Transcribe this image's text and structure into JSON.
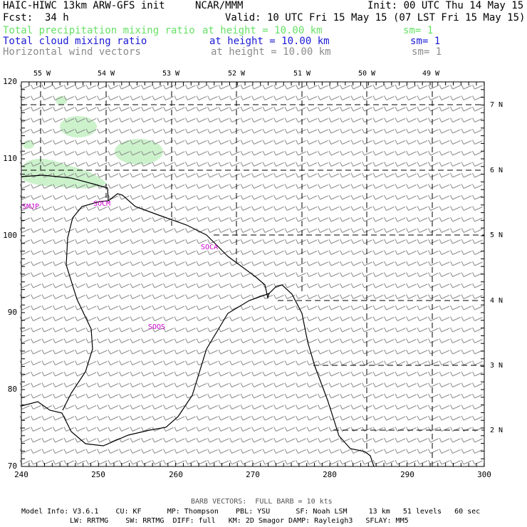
{
  "header": {
    "model": "HAIC-HIWC 13km ARW-GFS init",
    "org": "NCAR/MMM",
    "init": "Init: 00 UTC Thu 14 May 15",
    "fcst_label": "Fcst:",
    "fcst_value": "34 h",
    "valid": "Valid: 10 UTC Fri 15 May 15 (07 LST Fri 15 May 15)"
  },
  "fields": [
    {
      "name": "Total precipitation mixing ratio",
      "height": "at height = 10.00 km",
      "sm": "sm= 1",
      "color": "#66e066"
    },
    {
      "name": "Total cloud mixing ratio",
      "height": "at height = 10.00 km",
      "sm": "sm= 1",
      "color": "#1a1ad6"
    },
    {
      "name": "Horizontal wind vectors",
      "height": "at height = 10.00 km",
      "sm": "sm= 1",
      "color": "#8c8c8c"
    }
  ],
  "map": {
    "x_ticks": [
      "240",
      "250",
      "260",
      "270",
      "280",
      "290",
      "300"
    ],
    "y_ticks": [
      "70",
      "80",
      "90",
      "100",
      "110",
      "120"
    ],
    "lon_labels": [
      "55 W",
      "54 W",
      "53 W",
      "52 W",
      "51 W",
      "50 W",
      "49 W"
    ],
    "lat_labels": [
      "7 N",
      "6 N",
      "5 N",
      "4 N",
      "3 N",
      "2 N"
    ],
    "region_labels": [
      "SMJP",
      "SOCM",
      "SOCA",
      "SOOS"
    ],
    "precip_color": "#ccf2cc",
    "label_color": "#cc00cc",
    "barb_color": "#8c8c8c"
  },
  "footer": {
    "barb_note": "BARB VECTORS:  FULL BARB = 10 kts",
    "line1": "Model Info: V3.6.1    CU: KF      MP: Thompson    PBL: YSU      SF: Noah LSM     13 km   51 levels   60 sec",
    "line2": "LW: RRTMG    SW: RRTMG  DIFF: full   KM: 2D Smagor DAMP: Rayleigh3   SFLAY: MM5"
  }
}
